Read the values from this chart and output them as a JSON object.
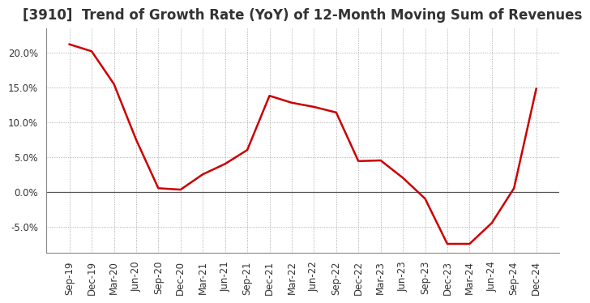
{
  "title": "[3910]  Trend of Growth Rate (YoY) of 12-Month Moving Sum of Revenues",
  "x_labels": [
    "Sep-19",
    "Dec-19",
    "Mar-20",
    "Jun-20",
    "Sep-20",
    "Dec-20",
    "Mar-21",
    "Jun-21",
    "Sep-21",
    "Dec-21",
    "Mar-22",
    "Jun-22",
    "Sep-22",
    "Dec-22",
    "Mar-23",
    "Jun-23",
    "Sep-23",
    "Dec-23",
    "Mar-24",
    "Jun-24",
    "Sep-24",
    "Dec-24"
  ],
  "y_values": [
    0.212,
    0.202,
    0.155,
    0.075,
    0.005,
    0.003,
    0.025,
    0.04,
    0.06,
    0.138,
    0.128,
    0.122,
    0.114,
    0.044,
    0.045,
    0.02,
    -0.01,
    -0.075,
    -0.075,
    -0.045,
    0.005,
    0.148
  ],
  "line_color": "#cc0000",
  "line_width": 1.8,
  "background_color": "#ffffff",
  "plot_bg_color": "#ffffff",
  "grid_color": "#999999",
  "ylim": [
    -0.088,
    0.235
  ],
  "yticks": [
    -0.05,
    0.0,
    0.05,
    0.1,
    0.15,
    0.2
  ],
  "title_fontsize": 12,
  "tick_fontsize": 8.5,
  "title_color": "#333333"
}
